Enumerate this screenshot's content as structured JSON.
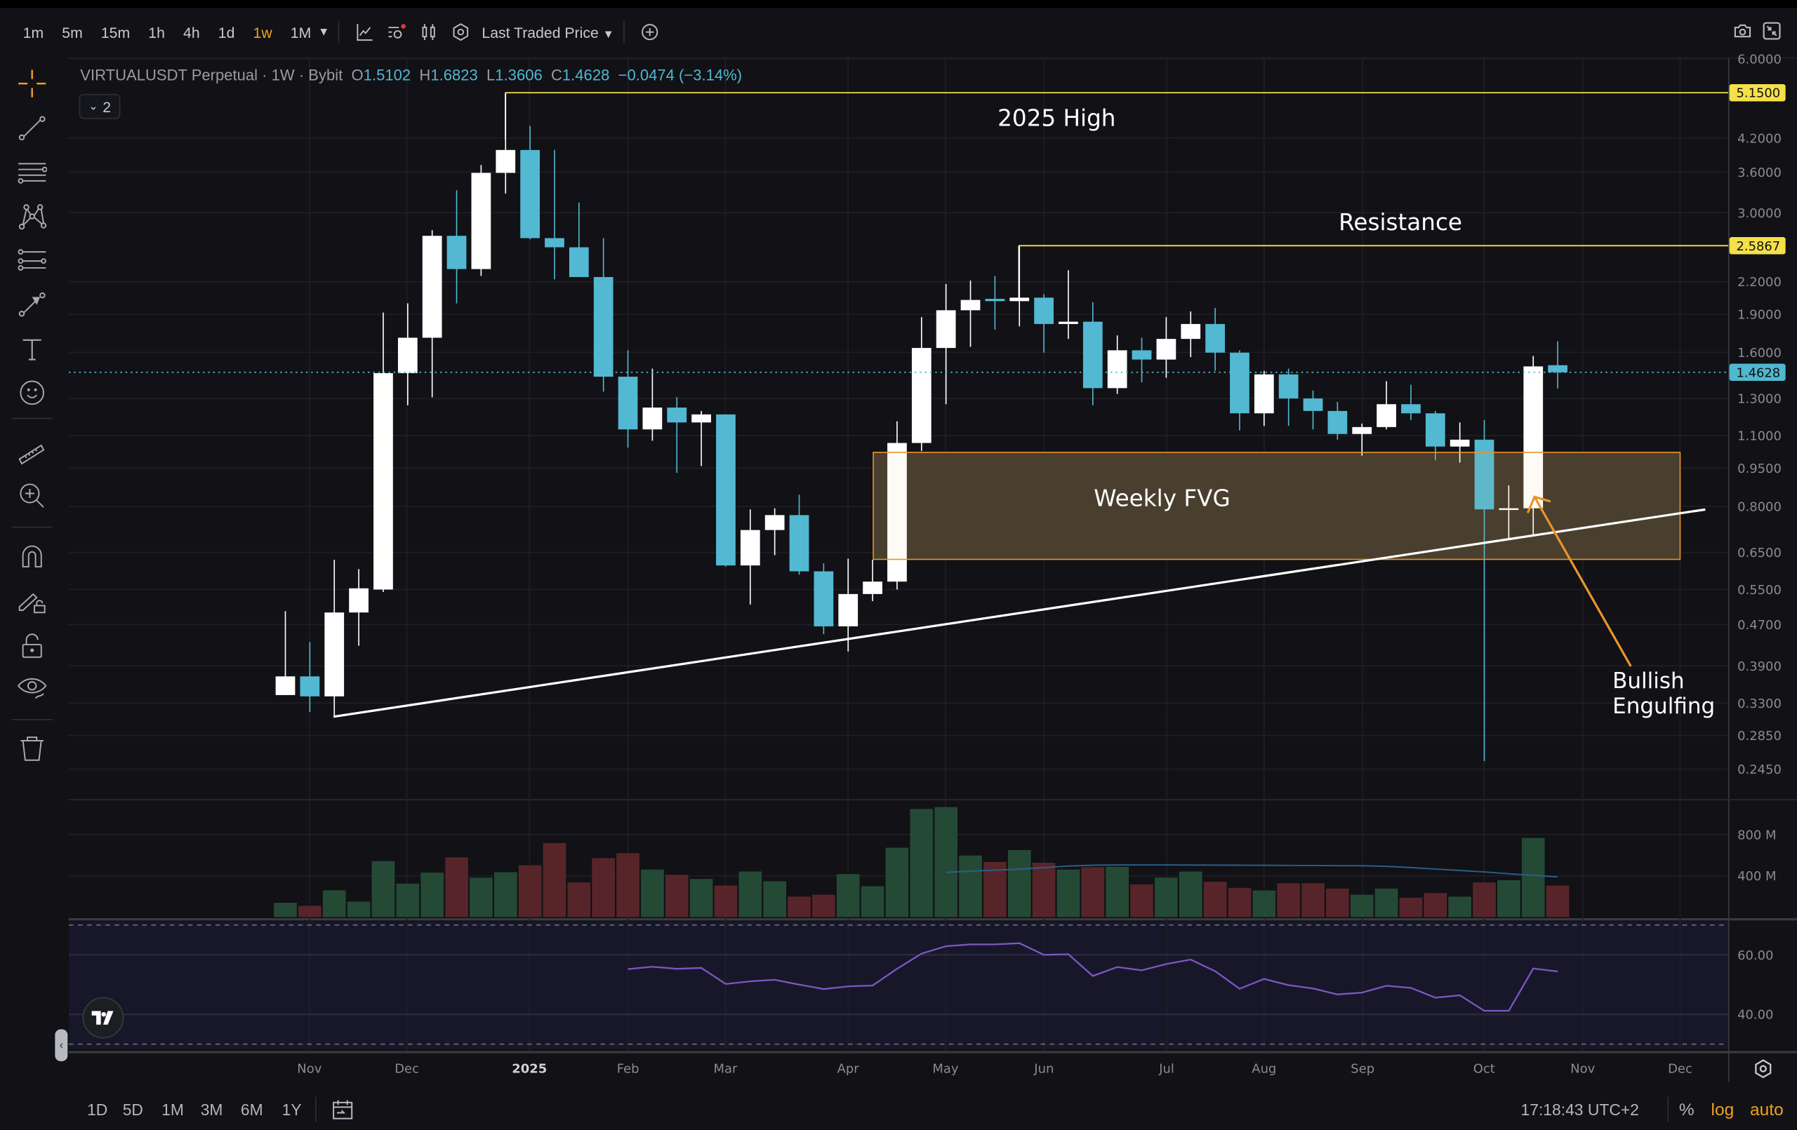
{
  "toolbar": {
    "timeframes": [
      "1m",
      "5m",
      "15m",
      "1h",
      "4h",
      "1d",
      "1w",
      "1M"
    ],
    "active_timeframe": "1w",
    "price_source": "Last Traded Price",
    "icons": [
      "indicators-icon",
      "alerts-icon",
      "candle-style-icon",
      "settings-icon",
      "add-icon",
      "camera-icon",
      "collapse-icon"
    ]
  },
  "legend": {
    "symbol": "VIRTUALUSDT Perpetual · 1W · Bybit",
    "o_label": "O",
    "o": "1.5102",
    "h_label": "H",
    "h": "1.6823",
    "l_label": "L",
    "l": "1.3606",
    "c_label": "C",
    "c": "1.4628",
    "change": "−0.0474 (−3.14%)",
    "indicators_count": "2"
  },
  "sidebar": {
    "tools": [
      "crosshair",
      "trend-line",
      "horizontal-lines",
      "pattern",
      "fib-channel",
      "arrow",
      "text",
      "emoji",
      "ruler",
      "zoom-in",
      "magnet",
      "drawing-lock",
      "lock",
      "eye",
      "trash"
    ]
  },
  "annotations": {
    "high_label": "2025 High",
    "resistance_label": "Resistance",
    "fvg_label": "Weekly FVG",
    "engulf_label_1": "Bullish",
    "engulf_label_2": "Engulfing"
  },
  "price_axis": {
    "scale": "log",
    "ticks": [
      "6.0000",
      "4.2000",
      "3.6000",
      "3.0000",
      "2.2000",
      "1.9000",
      "1.6000",
      "1.3000",
      "1.1000",
      "0.9500",
      "0.8000",
      "0.6500",
      "0.5500",
      "0.4700",
      "0.3900",
      "0.3300",
      "0.2850",
      "0.2450"
    ],
    "high_tag": "5.1500",
    "resistance_tag": "2.5867",
    "last_price_tag": "1.4628"
  },
  "volume_axis": {
    "ticks": [
      "800 M",
      "400 M"
    ]
  },
  "rsi_axis": {
    "ticks": [
      "60.00",
      "40.00"
    ]
  },
  "time_axis": {
    "labels": [
      "Nov",
      "Dec",
      "2025",
      "Feb",
      "Mar",
      "Apr",
      "May",
      "Jun",
      "Jul",
      "Aug",
      "Sep",
      "Oct",
      "Nov",
      "Dec"
    ],
    "settings_icon": "gear-icon"
  },
  "bottom": {
    "ranges": [
      "1D",
      "5D",
      "1M",
      "3M",
      "6M",
      "1Y"
    ],
    "clock": "17:18:43 UTC+2",
    "percent": "%",
    "log": "log",
    "auto": "auto"
  },
  "colors": {
    "bull": "#ffffff",
    "bear": "#53b8d1",
    "vol_up": "#244a35",
    "vol_down": "#572529",
    "accent": "#f0a020",
    "level_line": "#e8d44d",
    "fvg_border": "#e8952a",
    "rsi": "#7e57c2",
    "vol_ma": "#2a5f8a"
  },
  "chart_data": {
    "type": "candlestick",
    "interval": "1W",
    "y_scale": "log",
    "ohlc": [
      [
        0.342,
        0.499,
        0.342,
        0.372
      ],
      [
        0.372,
        0.434,
        0.317,
        0.34
      ],
      [
        0.34,
        0.629,
        0.31,
        0.496
      ],
      [
        0.496,
        0.603,
        0.427,
        0.553
      ],
      [
        0.55,
        1.914,
        0.544,
        1.457
      ],
      [
        1.457,
        1.995,
        1.261,
        1.709
      ],
      [
        1.709,
        2.774,
        1.307,
        2.704
      ],
      [
        2.704,
        3.32,
        1.995,
        2.328
      ],
      [
        2.328,
        3.72,
        2.257,
        3.59
      ],
      [
        3.59,
        5.15,
        3.27,
        3.98
      ],
      [
        3.98,
        4.435,
        2.662,
        2.676
      ],
      [
        2.676,
        3.98,
        2.223,
        2.568
      ],
      [
        2.568,
        3.14,
        2.246,
        2.246
      ],
      [
        2.246,
        2.676,
        1.341,
        1.434
      ],
      [
        1.434,
        1.615,
        1.042,
        1.131
      ],
      [
        1.131,
        1.487,
        1.075,
        1.248
      ],
      [
        1.248,
        1.307,
        0.93,
        1.167
      ],
      [
        1.167,
        1.229,
        0.959,
        1.21
      ],
      [
        1.21,
        1.21,
        0.61,
        0.613
      ],
      [
        0.613,
        0.789,
        0.514,
        0.719
      ],
      [
        0.719,
        0.793,
        0.642,
        0.769
      ],
      [
        0.769,
        0.843,
        0.588,
        0.597
      ],
      [
        0.597,
        0.619,
        0.45,
        0.466
      ],
      [
        0.466,
        0.632,
        0.416,
        0.539
      ],
      [
        0.539,
        0.629,
        0.522,
        0.57
      ],
      [
        0.57,
        1.173,
        0.55,
        1.064
      ],
      [
        1.064,
        1.875,
        1.026,
        1.632
      ],
      [
        1.632,
        2.177,
        1.267,
        1.934
      ],
      [
        1.934,
        2.211,
        1.64,
        2.026
      ],
      [
        2.036,
        2.257,
        1.772,
        2.015
      ],
      [
        2.015,
        2.595,
        1.799,
        2.047
      ],
      [
        2.047,
        2.079,
        1.598,
        1.818
      ],
      [
        1.818,
        2.316,
        1.7,
        1.837
      ],
      [
        1.837,
        2.005,
        1.261,
        1.362
      ],
      [
        1.362,
        1.727,
        1.327,
        1.615
      ],
      [
        1.615,
        1.709,
        1.398,
        1.549
      ],
      [
        1.549,
        1.875,
        1.427,
        1.7
      ],
      [
        1.7,
        1.924,
        1.566,
        1.818
      ],
      [
        1.818,
        1.954,
        1.472,
        1.598
      ],
      [
        1.598,
        1.615,
        1.126,
        1.216
      ],
      [
        1.216,
        1.472,
        1.149,
        1.449
      ],
      [
        1.449,
        1.487,
        1.149,
        1.3
      ],
      [
        1.3,
        1.348,
        1.131,
        1.229
      ],
      [
        1.229,
        1.28,
        1.08,
        1.108
      ],
      [
        1.108,
        1.161,
        1.005,
        1.143
      ],
      [
        1.143,
        1.405,
        1.131,
        1.267
      ],
      [
        1.267,
        1.383,
        1.179,
        1.216
      ],
      [
        1.216,
        1.229,
        0.984,
        1.047
      ],
      [
        1.047,
        1.167,
        0.974,
        1.08
      ],
      [
        1.08,
        1.179,
        0.254,
        0.789
      ],
      [
        0.789,
        0.879,
        0.693,
        0.793
      ],
      [
        0.793,
        1.574,
        0.704,
        1.502
      ],
      [
        1.5102,
        1.6823,
        1.3606,
        1.4628
      ]
    ],
    "volume_millions": [
      139,
      109,
      260,
      150,
      543,
      324,
      431,
      579,
      383,
      435,
      502,
      718,
      335,
      572,
      620,
      461,
      410,
      369,
      306,
      442,
      347,
      198,
      217,
      417,
      299,
      673,
      1049,
      1067,
      597,
      534,
      650,
      527,
      461,
      483,
      488,
      317,
      383,
      442,
      342,
      283,
      258,
      328,
      328,
      276,
      217,
      276,
      187,
      233,
      198,
      335,
      358,
      768,
      306
    ],
    "volume_ma_millions_from_week_28": [
      433,
      445,
      455,
      465,
      480,
      495,
      503,
      506,
      506,
      506,
      505,
      504,
      503,
      502,
      501,
      500,
      499,
      498,
      492,
      480,
      466,
      452,
      438,
      420,
      405,
      390
    ],
    "rsi_from_week_15": [
      55.2,
      56.0,
      55.3,
      55.6,
      50.2,
      51.1,
      51.6,
      50.0,
      48.5,
      49.4,
      49.7,
      55.3,
      60.4,
      62.9,
      63.5,
      63.5,
      63.9,
      60.0,
      60.2,
      52.9,
      55.9,
      54.8,
      56.9,
      58.4,
      54.5,
      48.6,
      51.9,
      49.8,
      48.7,
      46.7,
      47.3,
      49.6,
      48.9,
      45.6,
      46.4,
      41.2,
      41.2,
      55.4,
      54.4
    ],
    "rsi_bands": [
      70,
      30
    ],
    "levels": {
      "high": 5.15,
      "resistance": 2.5867,
      "last": 1.4628
    },
    "fvg_zone": [
      0.63,
      1.02
    ]
  }
}
